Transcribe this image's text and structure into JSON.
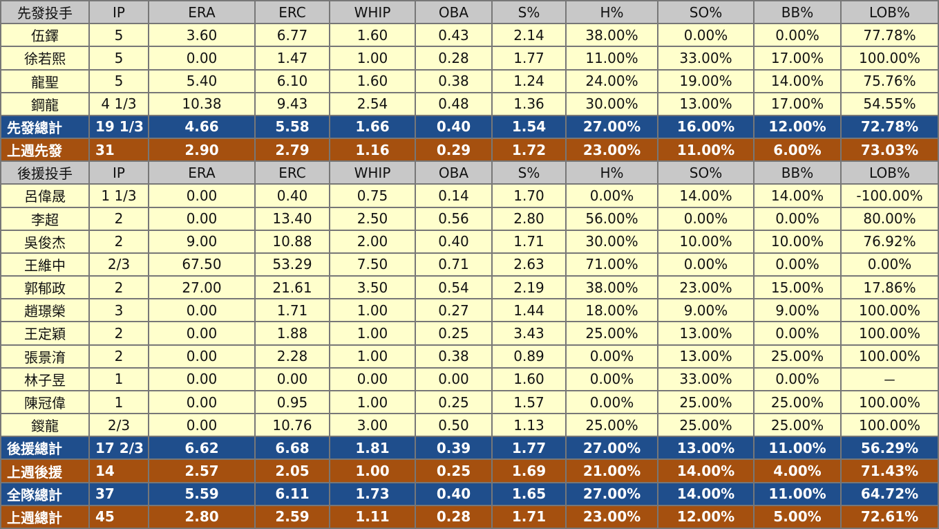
{
  "starters": {
    "header": [
      "先發投手",
      "IP",
      "ERA",
      "ERC",
      "WHIP",
      "OBA",
      "S%",
      "H%",
      "SO%",
      "BB%",
      "LOB%"
    ],
    "rows": [
      [
        "伍鐸",
        "5",
        "3.60",
        "6.77",
        "1.60",
        "0.43",
        "2.14",
        "38.00%",
        "0.00%",
        "0.00%",
        "77.78%"
      ],
      [
        "徐若熙",
        "5",
        "0.00",
        "1.47",
        "1.00",
        "0.28",
        "1.77",
        "11.00%",
        "33.00%",
        "17.00%",
        "100.00%"
      ],
      [
        "龍聖",
        "5",
        "5.40",
        "6.10",
        "1.60",
        "0.38",
        "1.24",
        "24.00%",
        "19.00%",
        "14.00%",
        "75.76%"
      ],
      [
        "鋼龍",
        "4 1/3",
        "10.38",
        "9.43",
        "2.54",
        "0.48",
        "1.36",
        "30.00%",
        "13.00%",
        "17.00%",
        "54.55%"
      ]
    ],
    "total": [
      "先發總計",
      "19 1/3",
      "4.66",
      "5.58",
      "1.66",
      "0.40",
      "1.54",
      "27.00%",
      "16.00%",
      "12.00%",
      "72.78%"
    ],
    "last_week": [
      "上週先發",
      "31",
      "2.90",
      "2.79",
      "1.16",
      "0.29",
      "1.72",
      "23.00%",
      "11.00%",
      "6.00%",
      "73.03%"
    ]
  },
  "relievers": {
    "header": [
      "後援投手",
      "IP",
      "ERA",
      "ERC",
      "WHIP",
      "OBA",
      "S%",
      "H%",
      "SO%",
      "BB%",
      "LOB%"
    ],
    "rows": [
      [
        "呂偉晟",
        "1 1/3",
        "0.00",
        "0.40",
        "0.75",
        "0.14",
        "1.70",
        "0.00%",
        "14.00%",
        "14.00%",
        "-100.00%"
      ],
      [
        "李超",
        "2",
        "0.00",
        "13.40",
        "2.50",
        "0.56",
        "2.80",
        "56.00%",
        "0.00%",
        "0.00%",
        "80.00%"
      ],
      [
        "吳俊杰",
        "2",
        "9.00",
        "10.88",
        "2.00",
        "0.40",
        "1.71",
        "30.00%",
        "10.00%",
        "10.00%",
        "76.92%"
      ],
      [
        "王維中",
        "2/3",
        "67.50",
        "53.29",
        "7.50",
        "0.71",
        "2.63",
        "71.00%",
        "0.00%",
        "0.00%",
        "0.00%"
      ],
      [
        "郭郁政",
        "2",
        "27.00",
        "21.61",
        "3.50",
        "0.54",
        "2.19",
        "38.00%",
        "23.00%",
        "15.00%",
        "17.86%"
      ],
      [
        "趙璟榮",
        "3",
        "0.00",
        "1.71",
        "1.00",
        "0.27",
        "1.44",
        "18.00%",
        "9.00%",
        "9.00%",
        "100.00%"
      ],
      [
        "王定穎",
        "2",
        "0.00",
        "1.88",
        "1.00",
        "0.25",
        "3.43",
        "25.00%",
        "13.00%",
        "0.00%",
        "100.00%"
      ],
      [
        "張景淯",
        "2",
        "0.00",
        "2.28",
        "1.00",
        "0.38",
        "0.89",
        "0.00%",
        "13.00%",
        "25.00%",
        "100.00%"
      ],
      [
        "林子昱",
        "1",
        "0.00",
        "0.00",
        "0.00",
        "0.00",
        "1.60",
        "0.00%",
        "33.00%",
        "0.00%",
        "－"
      ],
      [
        "陳冠偉",
        "1",
        "0.00",
        "0.95",
        "1.00",
        "0.25",
        "1.57",
        "0.00%",
        "25.00%",
        "25.00%",
        "100.00%"
      ],
      [
        "鍐龍",
        "2/3",
        "0.00",
        "10.76",
        "3.00",
        "0.50",
        "1.13",
        "25.00%",
        "25.00%",
        "25.00%",
        "100.00%"
      ]
    ],
    "total": [
      "後援總計",
      "17 2/3",
      "6.62",
      "6.68",
      "1.81",
      "0.39",
      "1.77",
      "27.00%",
      "13.00%",
      "11.00%",
      "56.29%"
    ],
    "last_week": [
      "上週後援",
      "14",
      "2.57",
      "2.05",
      "1.00",
      "0.25",
      "1.69",
      "21.00%",
      "14.00%",
      "4.00%",
      "71.43%"
    ]
  },
  "team": {
    "total": [
      "全隊總計",
      "37",
      "5.59",
      "6.11",
      "1.73",
      "0.40",
      "1.65",
      "27.00%",
      "14.00%",
      "11.00%",
      "64.72%"
    ],
    "last_week": [
      "上週總計",
      "45",
      "2.80",
      "2.59",
      "1.11",
      "0.28",
      "1.71",
      "23.00%",
      "12.00%",
      "5.00%",
      "72.61%"
    ]
  }
}
